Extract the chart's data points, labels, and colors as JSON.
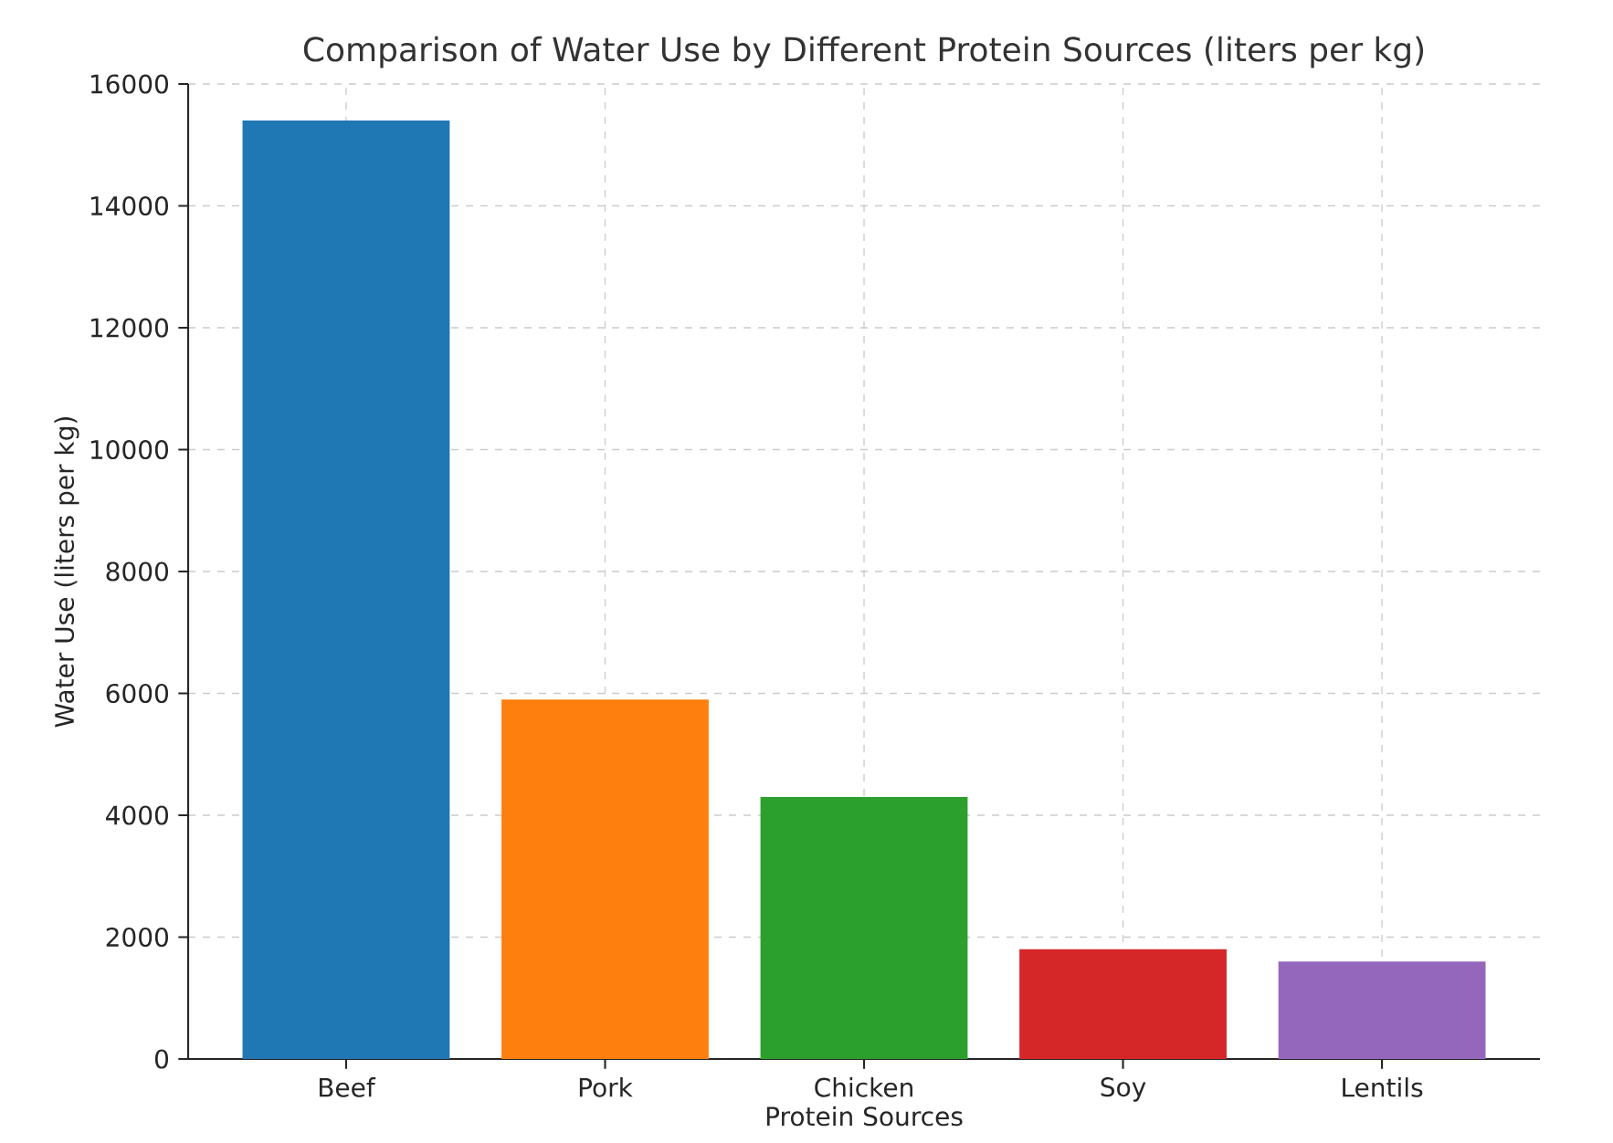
{
  "chart_data": {
    "type": "bar",
    "title": "Comparison of Water Use by Different Protein Sources (liters per kg)",
    "xlabel": "Protein Sources",
    "ylabel": "Water Use (liters per kg)",
    "categories": [
      "Beef",
      "Pork",
      "Chicken",
      "Soy",
      "Lentils"
    ],
    "values": [
      15400,
      5900,
      4300,
      1800,
      1600
    ],
    "colors": [
      "#1f77b4",
      "#ff7f0e",
      "#2ca02c",
      "#d62728",
      "#9467bd"
    ],
    "ylim": [
      0,
      16000
    ],
    "yticks": [
      0,
      2000,
      4000,
      6000,
      8000,
      10000,
      12000,
      14000,
      16000
    ],
    "grid": true
  }
}
